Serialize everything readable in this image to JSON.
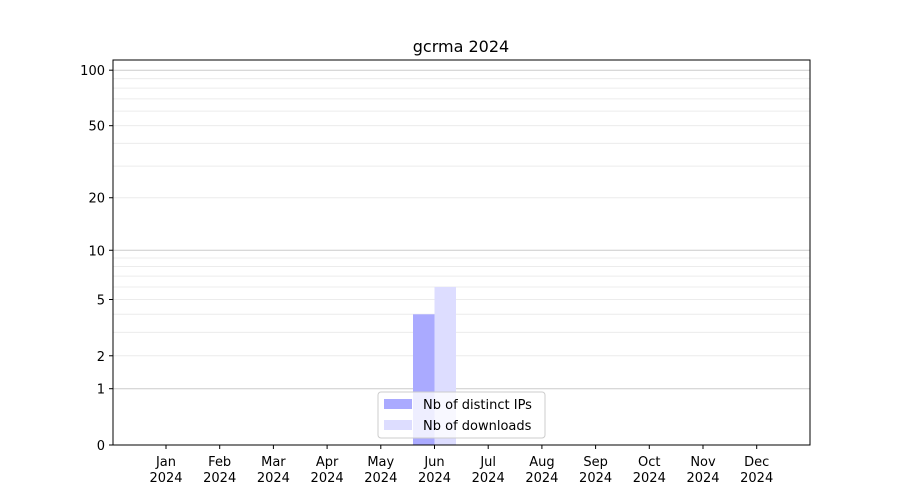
{
  "chart_data": {
    "type": "bar",
    "title": "gcrma 2024",
    "xlabel": "",
    "ylabel": "",
    "yscale": "log(1+x)",
    "ylim": [
      0,
      113
    ],
    "yticks": [
      0,
      1,
      2,
      5,
      10,
      20,
      50,
      100
    ],
    "ytick_labels": [
      "0",
      "1",
      "2",
      "5",
      "10",
      "20",
      "50",
      "100"
    ],
    "yminor": [
      3,
      4,
      6,
      7,
      8,
      9,
      30,
      40,
      60,
      70,
      80,
      90
    ],
    "grid": true,
    "legend_position": "lower-center",
    "categories": [
      "Jan\n2024",
      "Feb\n2024",
      "Mar\n2024",
      "Apr\n2024",
      "May\n2024",
      "Jun\n2024",
      "Jul\n2024",
      "Aug\n2024",
      "Sep\n2024",
      "Oct\n2024",
      "Nov\n2024",
      "Dec\n2024"
    ],
    "series": [
      {
        "name": "Nb of distinct IPs",
        "color": "#aaaaff",
        "values": [
          0,
          0,
          0,
          0,
          0,
          4,
          0,
          0,
          0,
          0,
          0,
          0
        ]
      },
      {
        "name": "Nb of downloads",
        "color": "#ddddff",
        "values": [
          0,
          0,
          0,
          0,
          0,
          6,
          0,
          0,
          0,
          0,
          0,
          0
        ]
      }
    ]
  }
}
